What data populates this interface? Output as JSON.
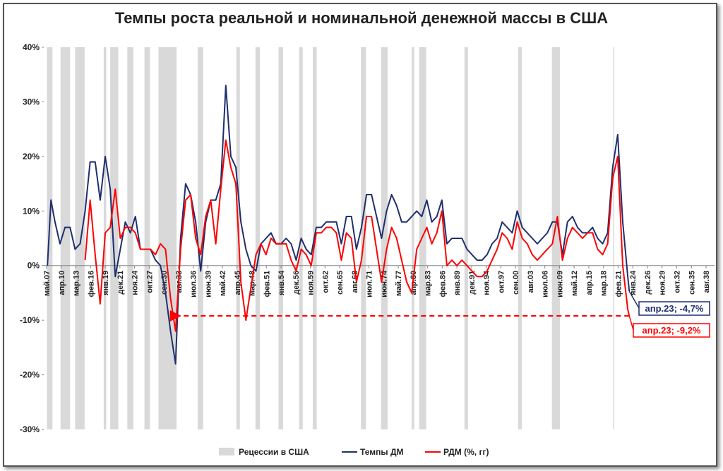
{
  "chart_data": {
    "type": "line",
    "title": "Темпы роста реальной и номинальной денежной массы в США",
    "xlim": [
      1906.77,
      2040.27
    ],
    "ylim": [
      -30,
      40
    ],
    "yticks": [
      {
        "value": 40,
        "label": "40%"
      },
      {
        "value": 30,
        "label": "30%"
      },
      {
        "value": 20,
        "label": "20%"
      },
      {
        "value": 10,
        "label": "10%"
      },
      {
        "value": 0,
        "label": "0%"
      },
      {
        "value": -10,
        "label": "-10%"
      },
      {
        "value": -20,
        "label": "-20%"
      },
      {
        "value": -30,
        "label": "-30%"
      }
    ],
    "xticks": [
      {
        "value": 1907.33,
        "label": "май.07"
      },
      {
        "value": 1910.25,
        "label": "апр.10"
      },
      {
        "value": 1913.17,
        "label": "мар.13"
      },
      {
        "value": 1916.08,
        "label": "фев.16"
      },
      {
        "value": 1919.0,
        "label": "янв.19"
      },
      {
        "value": 1921.92,
        "label": "дек.21"
      },
      {
        "value": 1924.83,
        "label": "ноя.24"
      },
      {
        "value": 1927.75,
        "label": "окт.27"
      },
      {
        "value": 1930.67,
        "label": "сен.30"
      },
      {
        "value": 1933.58,
        "label": "авг.33"
      },
      {
        "value": 1936.5,
        "label": "июл.36"
      },
      {
        "value": 1939.42,
        "label": "июн.39"
      },
      {
        "value": 1942.33,
        "label": "май.42"
      },
      {
        "value": 1945.25,
        "label": "апр.45"
      },
      {
        "value": 1948.17,
        "label": "мар.48"
      },
      {
        "value": 1951.08,
        "label": "фев.51"
      },
      {
        "value": 1954.0,
        "label": "янв.54"
      },
      {
        "value": 1956.92,
        "label": "дек.56"
      },
      {
        "value": 1959.83,
        "label": "ноя.59"
      },
      {
        "value": 1962.75,
        "label": "окт.62"
      },
      {
        "value": 1965.67,
        "label": "сен.65"
      },
      {
        "value": 1968.58,
        "label": "авг.68"
      },
      {
        "value": 1971.5,
        "label": "июл.71"
      },
      {
        "value": 1974.42,
        "label": "июн.74"
      },
      {
        "value": 1977.33,
        "label": "май.77"
      },
      {
        "value": 1980.25,
        "label": "апр.80"
      },
      {
        "value": 1983.17,
        "label": "мар.83"
      },
      {
        "value": 1986.08,
        "label": "фев.86"
      },
      {
        "value": 1989.0,
        "label": "янв.89"
      },
      {
        "value": 1991.92,
        "label": "дек.91"
      },
      {
        "value": 1994.83,
        "label": "ноя.94"
      },
      {
        "value": 1997.75,
        "label": "окт.97"
      },
      {
        "value": 2000.67,
        "label": "сен.00"
      },
      {
        "value": 2003.58,
        "label": "авг.03"
      },
      {
        "value": 2006.5,
        "label": "июл.06"
      },
      {
        "value": 2009.42,
        "label": "июн.09"
      },
      {
        "value": 2012.33,
        "label": "май.12"
      },
      {
        "value": 2015.25,
        "label": "апр.15"
      },
      {
        "value": 2018.17,
        "label": "мар.18"
      },
      {
        "value": 2021.08,
        "label": "фев.21"
      },
      {
        "value": 2024.0,
        "label": "янв.24"
      },
      {
        "value": 2026.92,
        "label": "дек.26"
      },
      {
        "value": 2029.83,
        "label": "ноя.29"
      },
      {
        "value": 2032.75,
        "label": "окт.32"
      },
      {
        "value": 2035.67,
        "label": "сен.35"
      },
      {
        "value": 2038.58,
        "label": "авг.38"
      }
    ],
    "recessions": {
      "name": "Рецессии в США",
      "color": "#d9d9d9",
      "spans": [
        [
          1907.4,
          1908.5
        ],
        [
          1910.1,
          1912.0
        ],
        [
          1913.0,
          1914.9
        ],
        [
          1918.7,
          1919.2
        ],
        [
          1920.0,
          1921.6
        ],
        [
          1923.4,
          1924.6
        ],
        [
          1926.8,
          1927.9
        ],
        [
          1929.6,
          1933.2
        ],
        [
          1937.4,
          1938.5
        ],
        [
          1945.1,
          1945.8
        ],
        [
          1948.9,
          1949.8
        ],
        [
          1953.5,
          1954.4
        ],
        [
          1957.6,
          1958.3
        ],
        [
          1960.3,
          1961.1
        ],
        [
          1969.9,
          1970.9
        ],
        [
          1973.9,
          1975.2
        ],
        [
          1980.0,
          1980.5
        ],
        [
          1981.5,
          1982.9
        ],
        [
          1990.5,
          1991.2
        ],
        [
          2001.2,
          2001.9
        ],
        [
          2007.9,
          2009.5
        ],
        [
          2020.1,
          2020.3
        ]
      ]
    },
    "x": [
      1907.5,
      1908.2,
      1909,
      1910,
      1911,
      1912,
      1913,
      1914,
      1915,
      1916,
      1917,
      1918,
      1919,
      1920,
      1921,
      1922,
      1923,
      1924,
      1925,
      1926,
      1927,
      1928,
      1929,
      1930,
      1931,
      1932,
      1933,
      1934,
      1935,
      1936,
      1937,
      1938,
      1939,
      1940,
      1941,
      1942,
      1943,
      1944,
      1945,
      1946,
      1947,
      1948,
      1949,
      1950,
      1951,
      1952,
      1953,
      1954,
      1955,
      1956,
      1957,
      1958,
      1959,
      1960,
      1961,
      1962,
      1963,
      1964,
      1965,
      1966,
      1967,
      1968,
      1969,
      1970,
      1971,
      1972,
      1973,
      1974,
      1975,
      1976,
      1977,
      1978,
      1979,
      1980,
      1981,
      1982,
      1983,
      1984,
      1985,
      1986,
      1987,
      1988,
      1989,
      1990,
      1991,
      1992,
      1993,
      1994,
      1995,
      1996,
      1997,
      1998,
      1999,
      2000,
      2001,
      2002,
      2003,
      2004,
      2005,
      2006,
      2007,
      2008,
      2009,
      2010,
      2011,
      2012,
      2013,
      2014,
      2015,
      2016,
      2017,
      2018,
      2019,
      2020,
      2021,
      2022,
      2023,
      2023.3
    ],
    "series": [
      {
        "name": "Темпы ДМ",
        "color": "#1f2f6e",
        "values": [
          0,
          12,
          8,
          4,
          7,
          7,
          3,
          4,
          10,
          19,
          19,
          12,
          20,
          14,
          -2,
          3,
          8,
          6,
          9,
          3,
          3,
          3,
          1,
          0,
          -5,
          -12,
          -18,
          5,
          15,
          13,
          8,
          -1,
          8,
          12,
          12,
          15,
          33,
          20,
          18,
          8,
          3,
          0,
          -1,
          4,
          5,
          6,
          4,
          4,
          5,
          4,
          1,
          5,
          3,
          2,
          7,
          7,
          8,
          8,
          8,
          4,
          9,
          9,
          3,
          7,
          13,
          13,
          9,
          5,
          10,
          13,
          11,
          8,
          8,
          9,
          10,
          9,
          12,
          8,
          9,
          12,
          4,
          5,
          5,
          5,
          3,
          2,
          1,
          1,
          2,
          4,
          5,
          8,
          7,
          6,
          10,
          7,
          6,
          5,
          4,
          5,
          6,
          8,
          8,
          2,
          8,
          9,
          7,
          6,
          6,
          7,
          5,
          4,
          6,
          18,
          24,
          8,
          -2,
          -4.7
        ]
      },
      {
        "name": "РДМ (%, гг)",
        "color": "#ff0000",
        "values": [
          null,
          null,
          null,
          null,
          null,
          null,
          null,
          null,
          1,
          12,
          2,
          -7,
          6,
          7,
          14,
          5,
          7,
          7,
          6,
          3,
          3,
          3,
          2,
          4,
          3,
          -6,
          -12,
          3,
          12,
          13,
          5,
          2,
          9,
          12,
          4,
          14,
          23,
          18,
          15,
          -3,
          -10,
          -4,
          2,
          4,
          2,
          5,
          4,
          4,
          4,
          1,
          -1,
          3,
          2,
          0,
          6,
          6,
          7,
          7,
          6,
          1,
          6,
          5,
          -3,
          1,
          9,
          9,
          3,
          -3,
          3,
          7,
          5,
          1,
          -3,
          -5,
          3,
          5,
          7,
          4,
          6,
          10,
          0,
          1,
          0,
          1,
          0,
          -1,
          -2,
          -2,
          -1,
          1,
          3,
          6,
          5,
          3,
          8,
          5,
          4,
          2,
          1,
          2,
          3,
          4,
          9,
          1,
          5,
          7,
          6,
          5,
          6,
          6,
          3,
          2,
          4,
          16,
          20,
          0,
          -8,
          -9.2
        ]
      }
    ],
    "annotations": [
      {
        "text": "апр.23; -4,7%",
        "series": 0
      },
      {
        "text": "апр.23; -9,2%",
        "series": 1
      }
    ]
  }
}
